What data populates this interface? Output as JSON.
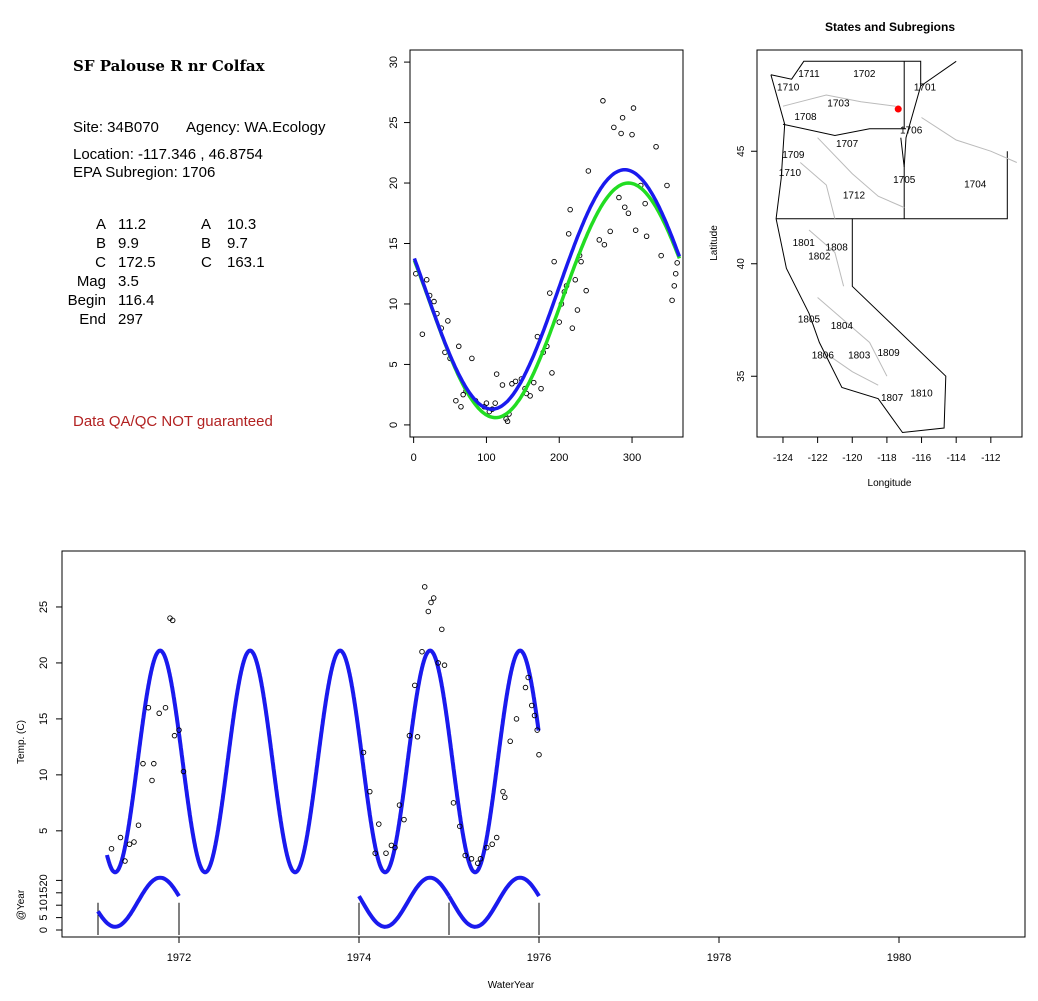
{
  "info_panel": {
    "title": "SF Palouse R nr Colfax",
    "site": "Site: 34B070",
    "agency": "Agency: WA.Ecology",
    "location": "Location: -117.346 , 46.8754",
    "epa": "EPA Subregion: 1706",
    "params_left": [
      {
        "label": "A",
        "value": "11.2"
      },
      {
        "label": "B",
        "value": "9.9"
      },
      {
        "label": "C",
        "value": "172.5"
      },
      {
        "label": "Mag",
        "value": "3.5"
      },
      {
        "label": "Begin",
        "value": "116.4"
      },
      {
        "label": "End",
        "value": "297"
      }
    ],
    "params_right": [
      {
        "label": "A",
        "value": "10.3"
      },
      {
        "label": "B",
        "value": "9.7"
      },
      {
        "label": "C",
        "value": "163.1"
      }
    ],
    "qa_note": "Data QA/QC NOT guaranteed",
    "qa_color": "#b22222"
  },
  "chart_data": [
    {
      "id": "seasonal",
      "type": "scatter",
      "title": "",
      "xlabel": "",
      "ylabel": "",
      "xlim": [
        -5,
        370
      ],
      "ylim": [
        -1,
        31
      ],
      "xticks": [
        0,
        100,
        200,
        300
      ],
      "yticks": [
        0,
        5,
        10,
        15,
        20,
        25,
        30
      ],
      "colors": {
        "points": "#000000",
        "fit_green": "#22dd22",
        "fit_blue": "#1a1aee"
      },
      "points": [
        [
          3,
          12.5
        ],
        [
          12,
          7.5
        ],
        [
          18,
          12
        ],
        [
          22,
          10.7
        ],
        [
          28,
          10.2
        ],
        [
          32,
          9.2
        ],
        [
          38,
          8
        ],
        [
          43,
          6
        ],
        [
          47,
          8.6
        ],
        [
          50,
          5.5
        ],
        [
          58,
          2
        ],
        [
          62,
          6.5
        ],
        [
          65,
          1.5
        ],
        [
          68,
          2.5
        ],
        [
          72,
          2.8
        ],
        [
          80,
          5.5
        ],
        [
          85,
          2
        ],
        [
          97,
          1.5
        ],
        [
          100,
          1.8
        ],
        [
          104,
          1.1
        ],
        [
          108,
          1.3
        ],
        [
          112,
          1.8
        ],
        [
          114,
          4.2
        ],
        [
          122,
          3.3
        ],
        [
          127,
          0.5
        ],
        [
          129,
          0.3
        ],
        [
          131,
          0.9
        ],
        [
          135,
          3.4
        ],
        [
          140,
          3.6
        ],
        [
          148,
          3.8
        ],
        [
          153,
          3
        ],
        [
          155,
          2.6
        ],
        [
          160,
          2.4
        ],
        [
          165,
          3.5
        ],
        [
          170,
          7.3
        ],
        [
          175,
          3
        ],
        [
          178,
          6
        ],
        [
          183,
          6.5
        ],
        [
          187,
          10.9
        ],
        [
          190,
          4.3
        ],
        [
          193,
          13.5
        ],
        [
          200,
          8.5
        ],
        [
          203,
          10
        ],
        [
          207,
          11
        ],
        [
          210,
          11.5
        ],
        [
          213,
          15.8
        ],
        [
          215,
          17.8
        ],
        [
          218,
          8
        ],
        [
          222,
          12
        ],
        [
          225,
          9.5
        ],
        [
          228,
          14
        ],
        [
          230,
          13.5
        ],
        [
          237,
          11.1
        ],
        [
          240,
          21
        ],
        [
          255,
          15.3
        ],
        [
          260,
          26.8
        ],
        [
          262,
          14.9
        ],
        [
          270,
          16
        ],
        [
          275,
          24.6
        ],
        [
          282,
          18.8
        ],
        [
          285,
          24.1
        ],
        [
          287,
          25.4
        ],
        [
          290,
          18
        ],
        [
          295,
          17.5
        ],
        [
          300,
          24
        ],
        [
          302,
          26.2
        ],
        [
          305,
          16.1
        ],
        [
          312,
          19.8
        ],
        [
          318,
          18.3
        ],
        [
          320,
          15.6
        ],
        [
          333,
          23
        ],
        [
          340,
          14
        ],
        [
          348,
          19.8
        ],
        [
          355,
          10.3
        ],
        [
          358,
          11.5
        ],
        [
          360,
          12.5
        ],
        [
          362,
          13.4
        ]
      ],
      "fits": [
        {
          "name": "",
          "color": "#22dd22",
          "A": 10.3,
          "B": 9.7,
          "C": 163.1,
          "mode": "sine"
        },
        {
          "name": "",
          "color": "#1a1aee",
          "A": 11.2,
          "B": 9.9,
          "C": 172.5,
          "mode": "sine"
        }
      ]
    },
    {
      "id": "map",
      "type": "scatter",
      "title": "States and Subregions",
      "xlabel": "Longitude",
      "ylabel": "Latitude",
      "xlim": [
        -125.5,
        -110.2
      ],
      "ylim": [
        32.3,
        49.5
      ],
      "xticks": [
        -124,
        -122,
        -120,
        -118,
        -116,
        -114,
        -112
      ],
      "yticks": [
        35,
        40,
        45
      ],
      "site": {
        "lon": -117.346,
        "lat": 46.8754,
        "color": "#ff0000"
      },
      "region_labels": [
        {
          "label": "1711",
          "lon": -122.5,
          "lat": 48.3
        },
        {
          "label": "1702",
          "lon": -119.3,
          "lat": 48.3
        },
        {
          "label": "1710",
          "lon": -123.7,
          "lat": 47.7
        },
        {
          "label": "1701",
          "lon": -115.8,
          "lat": 47.7
        },
        {
          "label": "1703",
          "lon": -120.8,
          "lat": 47.0
        },
        {
          "label": "1708",
          "lon": -122.7,
          "lat": 46.4
        },
        {
          "label": "1706",
          "lon": -116.6,
          "lat": 45.8
        },
        {
          "label": "1707",
          "lon": -120.3,
          "lat": 45.2
        },
        {
          "label": "1709",
          "lon": -123.4,
          "lat": 44.7
        },
        {
          "label": "1710",
          "lon": -123.6,
          "lat": 43.9
        },
        {
          "label": "1705",
          "lon": -117.0,
          "lat": 43.6
        },
        {
          "label": "1704",
          "lon": -112.9,
          "lat": 43.4
        },
        {
          "label": "1712",
          "lon": -119.9,
          "lat": 42.9
        },
        {
          "label": "1801",
          "lon": -122.8,
          "lat": 40.8
        },
        {
          "label": "1808",
          "lon": -120.9,
          "lat": 40.6
        },
        {
          "label": "1802",
          "lon": -121.9,
          "lat": 40.2
        },
        {
          "label": "1805",
          "lon": -122.5,
          "lat": 37.4
        },
        {
          "label": "1804",
          "lon": -120.6,
          "lat": 37.1
        },
        {
          "label": "1809",
          "lon": -117.9,
          "lat": 35.9
        },
        {
          "label": "1806",
          "lon": -121.7,
          "lat": 35.8
        },
        {
          "label": "1803",
          "lon": -119.6,
          "lat": 35.8
        },
        {
          "label": "1810",
          "lon": -116.0,
          "lat": 34.1
        },
        {
          "label": "1807",
          "lon": -117.7,
          "lat": 33.9
        }
      ]
    },
    {
      "id": "timeseries",
      "type": "scatter",
      "title": "",
      "xlabel": "WaterYear",
      "ylabel": "Temp. (C)",
      "ylabel2": "@Year",
      "xlim": [
        1970.7,
        1981.4
      ],
      "xticks": [
        1972,
        1974,
        1976,
        1978,
        1980
      ],
      "ylim": [
        1.5,
        30
      ],
      "yticks": [
        5,
        10,
        15,
        20,
        25
      ],
      "ylim2": [
        -2,
        25
      ],
      "yticks2": [
        0,
        5,
        10,
        15,
        20
      ],
      "fit": {
        "A": 11.2,
        "B": 9.9,
        "C": 172.5,
        "x_start": 1971.1,
        "x_end": 1976.0
      },
      "points": [
        [
          1971.25,
          3.4
        ],
        [
          1971.35,
          4.4
        ],
        [
          1971.4,
          2.3
        ],
        [
          1971.45,
          3.8
        ],
        [
          1971.5,
          4
        ],
        [
          1971.55,
          5.5
        ],
        [
          1971.6,
          11
        ],
        [
          1971.66,
          16
        ],
        [
          1971.7,
          9.5
        ],
        [
          1971.72,
          11
        ],
        [
          1971.78,
          15.5
        ],
        [
          1971.85,
          16
        ],
        [
          1971.9,
          24
        ],
        [
          1971.93,
          23.8
        ],
        [
          1971.95,
          13.5
        ],
        [
          1972.0,
          14
        ],
        [
          1972.05,
          10.3
        ],
        [
          1974.05,
          12
        ],
        [
          1974.12,
          8.5
        ],
        [
          1974.18,
          3
        ],
        [
          1974.22,
          5.6
        ],
        [
          1974.3,
          3
        ],
        [
          1974.36,
          3.7
        ],
        [
          1974.4,
          3.5
        ],
        [
          1974.45,
          7.3
        ],
        [
          1974.5,
          6
        ],
        [
          1974.56,
          13.5
        ],
        [
          1974.62,
          18
        ],
        [
          1974.65,
          13.4
        ],
        [
          1974.7,
          21
        ],
        [
          1974.73,
          26.8
        ],
        [
          1974.77,
          24.6
        ],
        [
          1974.8,
          25.4
        ],
        [
          1974.83,
          25.8
        ],
        [
          1974.88,
          20
        ],
        [
          1974.92,
          23
        ],
        [
          1974.95,
          19.8
        ],
        [
          1975.05,
          7.5
        ],
        [
          1975.12,
          5.4
        ],
        [
          1975.18,
          2.8
        ],
        [
          1975.25,
          2.5
        ],
        [
          1975.32,
          2.1
        ],
        [
          1975.35,
          2.5
        ],
        [
          1975.42,
          3.5
        ],
        [
          1975.48,
          3.8
        ],
        [
          1975.53,
          4.4
        ],
        [
          1975.6,
          8.5
        ],
        [
          1975.62,
          8
        ],
        [
          1975.68,
          13
        ],
        [
          1975.75,
          15
        ],
        [
          1975.85,
          17.8
        ],
        [
          1975.88,
          18.7
        ],
        [
          1975.92,
          16.2
        ],
        [
          1975.95,
          15.3
        ],
        [
          1975.98,
          14
        ],
        [
          1976.0,
          11.8
        ]
      ],
      "year_segments": [
        {
          "x_start": 1971.1,
          "x_end": 1972.0
        },
        {
          "x_start": 1974.0,
          "x_end": 1975.0
        },
        {
          "x_start": 1975.0,
          "x_end": 1976.0
        }
      ]
    }
  ]
}
